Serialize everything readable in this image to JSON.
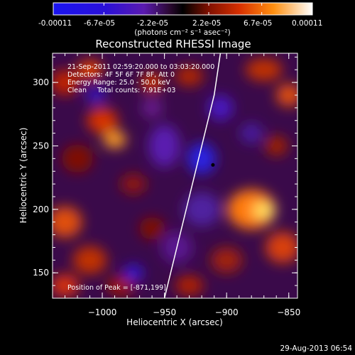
{
  "colorbar": {
    "ticks": [
      "-0.00011",
      "-6.7e-05",
      "-2.2e-05",
      "2.2e-05",
      "6.7e-05",
      "0.00011"
    ],
    "unit_label": "(photons cm⁻² s⁻¹ asec⁻²)",
    "range": [
      -0.00011,
      0.00011
    ]
  },
  "chart_data": {
    "type": "heatmap",
    "title": "Reconstructed RHESSI Image",
    "xlabel": "Heliocentric X (arcsec)",
    "ylabel": "Heliocentric Y (arcsec)",
    "xlim": [
      -1040,
      -843
    ],
    "ylim": [
      130,
      323
    ],
    "xticks": [
      -1000,
      -950,
      -900,
      -850
    ],
    "yticks": [
      150,
      200,
      250,
      300
    ],
    "xtick_labels": [
      "−1000",
      "−950",
      "−900",
      "−850"
    ],
    "ytick_labels": [
      "150",
      "200",
      "250",
      "300"
    ],
    "annotations": [
      "21-Sep-2011 02:59:20.000 to 03:03:20.000",
      "Detectors: 4F 5F 6F 7F 8F, Att 0",
      "Energy Range: 25.0 - 50.0 keV",
      "Clean     Total counts: 7.91E+03"
    ],
    "peak_label": "Position of Peak = [-871,199]",
    "peak": {
      "x": -871,
      "y": 199
    },
    "marker": {
      "x": -911,
      "y": 235
    },
    "limb": {
      "x": [
        -950,
        -940,
        -930,
        -920,
        -910,
        -905
      ],
      "y": [
        130,
        170,
        210,
        250,
        290,
        323
      ]
    }
  },
  "footer": {
    "timestamp": "29-Aug-2013 06:54"
  },
  "colors": {
    "background": "#000000",
    "text": "#ffffff",
    "limb": "#ffffff",
    "marker": "#000000"
  }
}
